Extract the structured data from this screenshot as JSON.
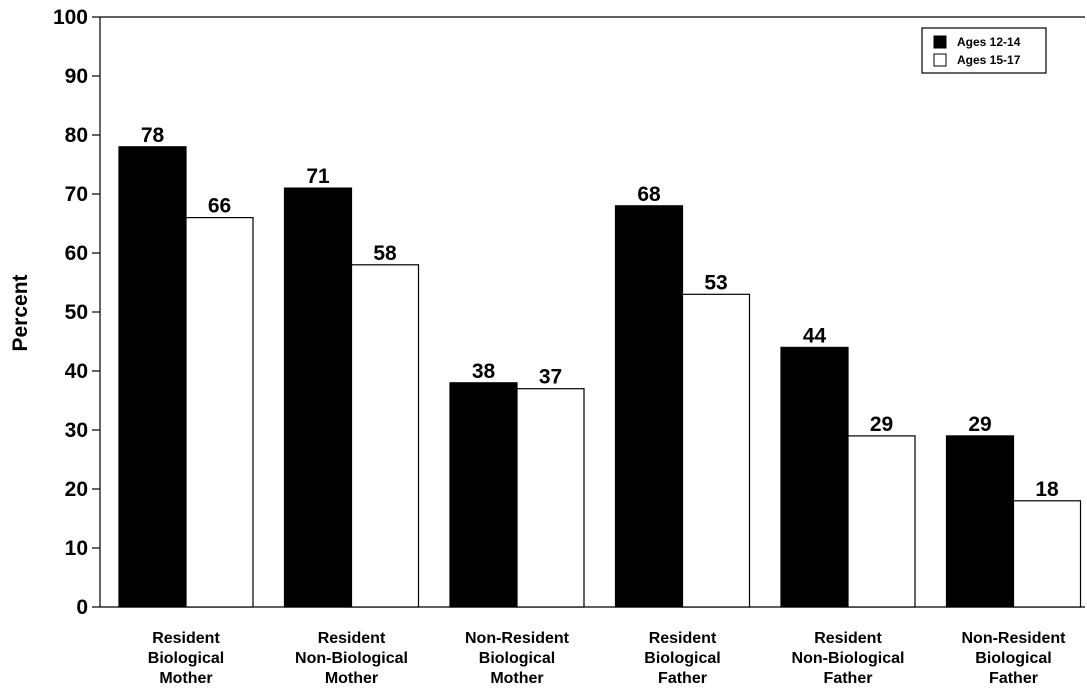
{
  "chart_data": {
    "type": "bar",
    "ylabel": "Percent",
    "ylim": [
      0,
      100
    ],
    "yticks": [
      0,
      10,
      20,
      30,
      40,
      50,
      60,
      70,
      80,
      90,
      100
    ],
    "grid": false,
    "legend_position": "top-right",
    "categories": [
      [
        "Resident",
        "Biological",
        "Mother"
      ],
      [
        "Resident",
        "Non-Biological",
        "Mother"
      ],
      [
        "Non-Resident",
        "Biological",
        "Mother"
      ],
      [
        "Resident",
        "Biological",
        "Father"
      ],
      [
        "Resident",
        "Non-Biological",
        "Father"
      ],
      [
        "Non-Resident",
        "Biological",
        "Father"
      ]
    ],
    "series": [
      {
        "name": "Ages 12-14",
        "color": "#000000",
        "values": [
          78,
          71,
          38,
          68,
          44,
          29
        ]
      },
      {
        "name": "Ages 15-17",
        "color": "#ffffff",
        "values": [
          66,
          58,
          37,
          53,
          29,
          18
        ]
      }
    ]
  }
}
